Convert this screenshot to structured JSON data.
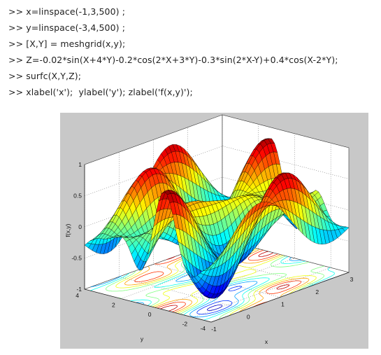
{
  "console": {
    "prompt": ">>",
    "lines": [
      "x=linspace(-1,3,500) ;",
      "y=linspace(-3,4,500) ;",
      "[X,Y] = meshgrid(x,y);",
      "Z=-0.02*sin(X+4*Y)-0.2*cos(2*X+3*Y)-0.3*sin(2*X-Y)+0.4*cos(X-2*Y);",
      "surfc(X,Y,Z);",
      "xlabel('x');  ylabel('y'); zlabel('f(x,y)');"
    ]
  },
  "chart_data": {
    "type": "surface",
    "function": "Z=-0.02*sin(X+4*Y)-0.2*cos(2*X+3*Y)-0.3*sin(2*X-Y)+0.4*cos(X-2*Y)",
    "x_range": [
      -1,
      3
    ],
    "y_range": [
      -3,
      4
    ],
    "z_range": [
      -1,
      1
    ],
    "xlabel": "x",
    "ylabel": "y",
    "zlabel": "f(x,y)",
    "x_ticks": [
      "-1",
      "0",
      "1",
      "2",
      "3"
    ],
    "y_ticks": [
      "-4",
      "-2",
      "0",
      "2",
      "4"
    ],
    "z_ticks": [
      "-1",
      "-0.5",
      "0",
      "0.5",
      "1"
    ],
    "colormap": "jet",
    "contours_on_floor": true,
    "grid": true
  }
}
